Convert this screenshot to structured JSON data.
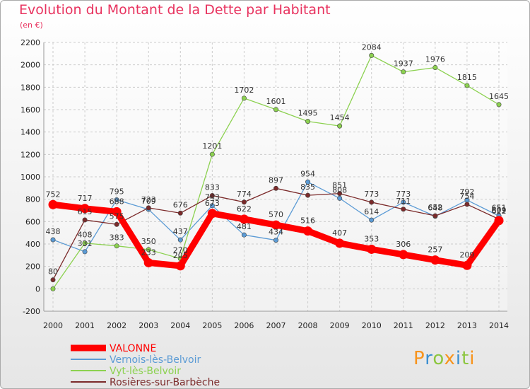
{
  "title": "Evolution du Montant de la Dette par Habitant",
  "unit": "(en €)",
  "logo": {
    "letters": [
      "P",
      "r",
      "o",
      "x",
      "i",
      "t",
      "i"
    ],
    "colors": [
      "#f7941d",
      "#3a8fd1",
      "#8cc63f",
      "#f7941d",
      "#3a8fd1",
      "#8cc63f",
      "#f7941d"
    ]
  },
  "chart_data": {
    "type": "line",
    "x": [
      "2000",
      "2001",
      "2002",
      "2003",
      "2004",
      "2005",
      "2006",
      "2007",
      "2008",
      "2009",
      "2010",
      "2011",
      "2012",
      "2013",
      "2014"
    ],
    "ylim": [
      -200,
      2200
    ],
    "yticks": [
      "-200",
      "0",
      "200",
      "400",
      "600",
      "800",
      "1000",
      "1200",
      "1400",
      "1600",
      "1800",
      "2000",
      "2200"
    ],
    "grid": true,
    "legend_position": "bottom-left",
    "series": [
      {
        "name": "VALONNE",
        "color": "#ff0000",
        "values": [
          752,
          717,
          688,
          233,
          205,
          673,
          622,
          570,
          516,
          407,
          353,
          306,
          257,
          209,
          609
        ],
        "labels": [
          "752",
          "717",
          "688",
          "233",
          "205",
          "673",
          "622",
          "570",
          "516",
          "407",
          "353",
          "306",
          "257",
          "209",
          "609"
        ]
      },
      {
        "name": "Vernois-lès-Belvoir",
        "color": "#5b9bd5",
        "values": [
          438,
          331,
          795,
          709,
          437,
          743,
          481,
          434,
          954,
          808,
          614,
          773,
          648,
          792,
          651
        ],
        "labels": [
          "438",
          "331",
          "795",
          "709",
          "437",
          "743",
          "481",
          "434",
          "954",
          "808",
          "614",
          "773",
          "648",
          "792",
          "651"
        ]
      },
      {
        "name": "Vyt-lès-Belvoir",
        "color": "#8cd150",
        "values": [
          0,
          408,
          383,
          350,
          270,
          1201,
          1702,
          1601,
          1495,
          1454,
          2084,
          1937,
          1976,
          1815,
          1645
        ],
        "labels": [
          "",
          "408",
          "383",
          "350",
          "270",
          "1201",
          "1702",
          "1601",
          "1495",
          "1454",
          "2084",
          "1937",
          "1976",
          "1815",
          "1645"
        ]
      },
      {
        "name": "Rosières-sur-Barbèche",
        "color": "#7b2a2a",
        "values": [
          80,
          615,
          575,
          723,
          676,
          833,
          774,
          897,
          835,
          851,
          773,
          711,
          652,
          754,
          622
        ],
        "labels": [
          "80",
          "615",
          "575",
          "723",
          "676",
          "833",
          "774",
          "897",
          "835",
          "851",
          "773",
          "711",
          "652",
          "754",
          "622"
        ]
      }
    ]
  }
}
